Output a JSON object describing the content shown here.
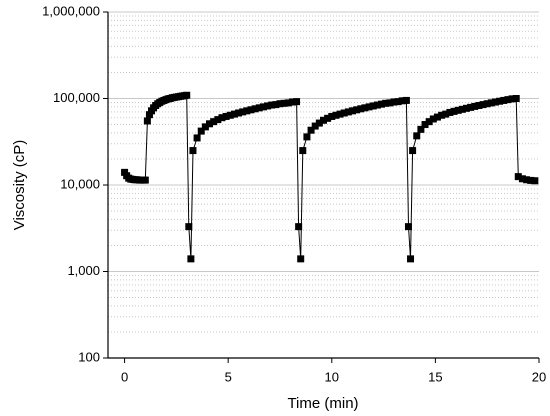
{
  "chart_data": {
    "type": "line",
    "x_label": "Time (min)",
    "y_label": "Viscosity (cP)",
    "color": "#000000",
    "marker": "square",
    "log_y": true,
    "grid": true,
    "minor_grid": true,
    "xlim": [
      -0.8,
      20
    ],
    "xticks": [
      0,
      5,
      10,
      15,
      20
    ],
    "ylim": [
      100,
      1000000
    ],
    "yticks": [
      {
        "value": 100,
        "label": "100"
      },
      {
        "value": 1000,
        "label": "1,000"
      },
      {
        "value": 10000,
        "label": "10,000"
      },
      {
        "value": 100000,
        "label": "100,000"
      },
      {
        "value": 1000000,
        "label": "1,000,000"
      }
    ],
    "x": [
      0,
      0.1,
      0.2,
      0.3,
      0.4,
      0.5,
      0.6,
      0.7,
      0.8,
      0.9,
      1.0,
      1.1,
      1.2,
      1.3,
      1.4,
      1.5,
      1.6,
      1.7,
      1.8,
      1.9,
      2.0,
      2.1,
      2.2,
      2.3,
      2.4,
      2.5,
      2.6,
      2.7,
      2.8,
      2.9,
      3.0,
      3.1,
      3.2,
      3.3,
      3.5,
      3.7,
      3.9,
      4.1,
      4.3,
      4.5,
      4.7,
      4.9,
      5.1,
      5.3,
      5.5,
      5.7,
      5.9,
      6.1,
      6.3,
      6.5,
      6.7,
      6.9,
      7.1,
      7.3,
      7.5,
      7.7,
      7.9,
      8.1,
      8.3,
      8.4,
      8.5,
      8.6,
      8.8,
      9.0,
      9.2,
      9.4,
      9.6,
      9.8,
      10.0,
      10.2,
      10.4,
      10.6,
      10.8,
      11.0,
      11.2,
      11.4,
      11.6,
      11.8,
      12.0,
      12.2,
      12.4,
      12.6,
      12.8,
      13.0,
      13.2,
      13.4,
      13.6,
      13.7,
      13.8,
      13.9,
      14.1,
      14.3,
      14.5,
      14.7,
      14.9,
      15.1,
      15.3,
      15.5,
      15.7,
      15.9,
      16.1,
      16.3,
      16.5,
      16.7,
      16.9,
      17.1,
      17.3,
      17.5,
      17.7,
      17.9,
      18.1,
      18.3,
      18.5,
      18.7,
      18.9,
      19.0,
      19.2,
      19.4,
      19.6,
      19.8
    ],
    "values": [
      14000,
      12800,
      12000,
      11700,
      11600,
      11500,
      11500,
      11400,
      11400,
      11400,
      11400,
      55000,
      65000,
      72000,
      78000,
      83000,
      87000,
      90000,
      93000,
      95000,
      97000,
      99000,
      100000,
      102000,
      103000,
      104000,
      105000,
      106000,
      107000,
      108000,
      109000,
      3300,
      1400,
      25000,
      35000,
      42000,
      47000,
      51000,
      54000,
      57000,
      60000,
      62000,
      64000,
      66000,
      68000,
      70000,
      72000,
      74000,
      76000,
      78000,
      80000,
      82000,
      84000,
      85000,
      87000,
      88000,
      89000,
      91000,
      92000,
      3300,
      1400,
      25000,
      36000,
      43000,
      48000,
      52000,
      56000,
      59000,
      62000,
      64000,
      66000,
      68000,
      70000,
      72000,
      74000,
      76000,
      78000,
      80000,
      82000,
      84000,
      86000,
      88000,
      89000,
      91000,
      92000,
      94000,
      95000,
      3300,
      1400,
      25000,
      37000,
      44000,
      50000,
      54000,
      58000,
      61000,
      64000,
      66000,
      69000,
      71000,
      73000,
      75000,
      77000,
      79000,
      81000,
      83000,
      85000,
      87000,
      89000,
      91000,
      93000,
      95000,
      97000,
      99000,
      100000,
      12500,
      11800,
      11500,
      11300,
      11200
    ]
  }
}
